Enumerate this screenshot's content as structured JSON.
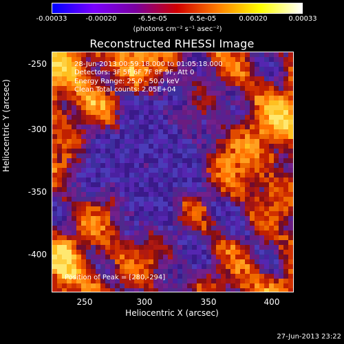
{
  "colorbar": {
    "ticks": [
      "-0.00033",
      "-0.00020",
      "-6.5e-05",
      "6.5e-05",
      "0.00020",
      "0.00033"
    ],
    "units": "(photons cm⁻² s⁻¹ asec⁻²)",
    "colors": [
      "#0000ff",
      "#7a00ff",
      "#7a00a0",
      "#d00000",
      "#ff8000",
      "#ffff00",
      "#ffffff"
    ]
  },
  "title": "Reconstructed RHESSI Image",
  "annotations": {
    "time": "28-Jun-2013 00:59:18.000 to 01:05:18.000",
    "detectors": "Detectors: 3F 5F 6F 7F 8F 9F, Att 0",
    "energy": "Energy Range: 25.0 - 50.0 keV",
    "clean": "Clean     Total counts: 2.05E+04",
    "peak": "Position of Peak = [280,-294]"
  },
  "axes": {
    "xlabel": "Heliocentric X (arcsec)",
    "ylabel": "Heliocentric Y (arcsec)",
    "xticks": [
      "250",
      "300",
      "350",
      "400"
    ],
    "yticks": [
      "-250",
      "-300",
      "-350",
      "-400"
    ]
  },
  "timestamp": "27-Jun-2013 23:22"
}
